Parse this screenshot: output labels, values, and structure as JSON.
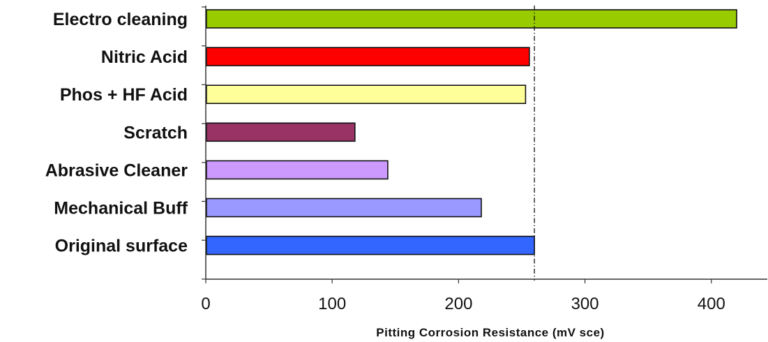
{
  "chart_data": {
    "type": "bar",
    "orientation": "horizontal",
    "categories": [
      "Electro cleaning",
      "Nitric Acid",
      "Phos + HF Acid",
      "Scratch",
      "Abrasive Cleaner",
      "Mechanical Buff",
      "Original surface"
    ],
    "values": [
      420,
      256,
      253,
      118,
      144,
      218,
      260
    ],
    "colors": [
      "#99cc00",
      "#ff0000",
      "#ffff99",
      "#993366",
      "#cc99ff",
      "#9999ff",
      "#3366ff"
    ],
    "title": "",
    "xlabel": "Pitting Corrosion Resistance (mV sce)",
    "ylabel": "",
    "xlim": [
      0,
      440
    ],
    "xticks": [
      0,
      100,
      200,
      300,
      400
    ],
    "xtick_labels": [
      "0",
      "100",
      "200",
      "300",
      "400"
    ],
    "reference_line": {
      "value": 260,
      "style": "dash-dot"
    },
    "grid": false,
    "legend": "none"
  }
}
